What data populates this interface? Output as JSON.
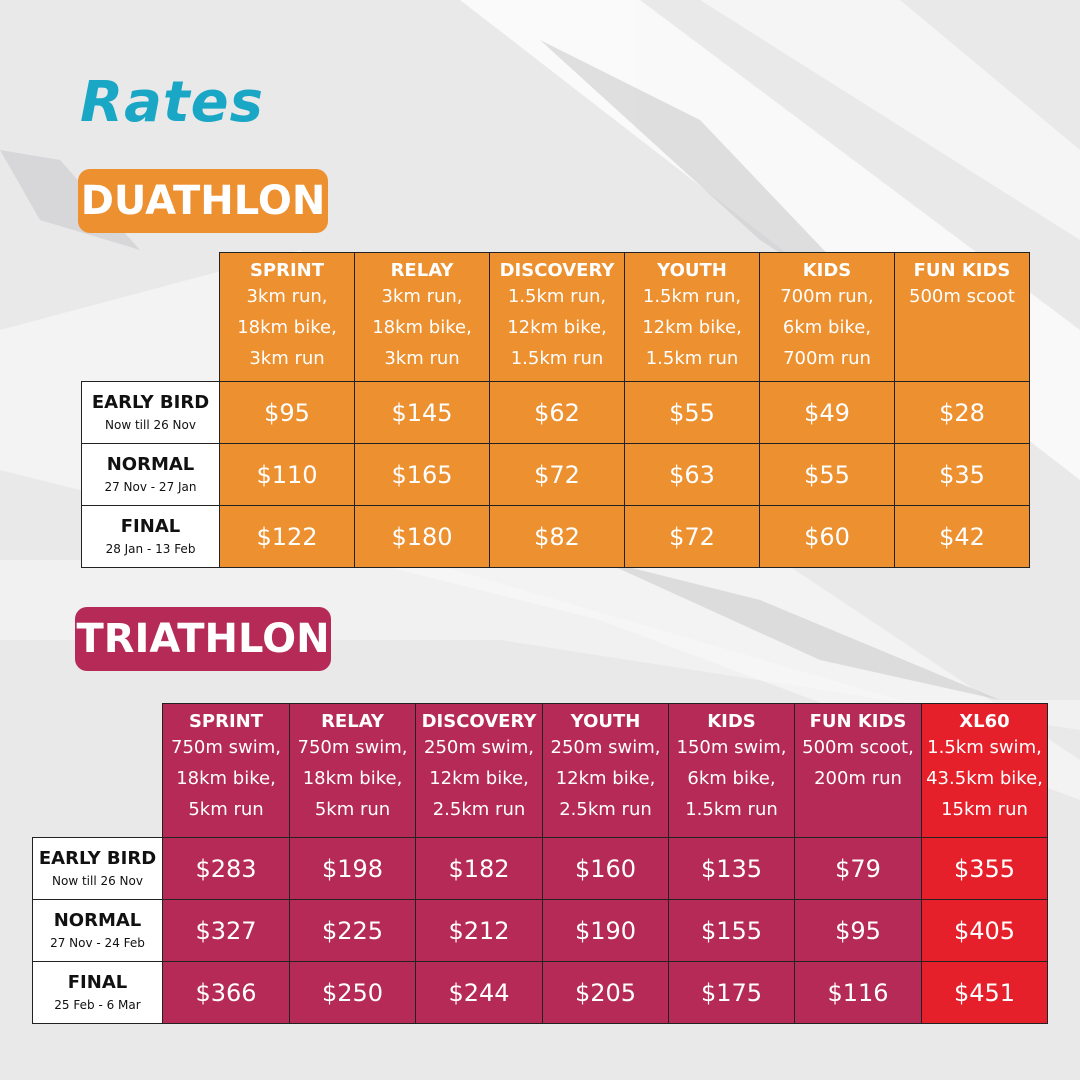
{
  "page_title": "Rates",
  "duathlon": {
    "heading": "DUATHLON",
    "columns": [
      {
        "name": "SPRINT",
        "desc": [
          "3km run,",
          "18km bike,",
          "3km run"
        ]
      },
      {
        "name": "RELAY",
        "desc": [
          "3km run,",
          "18km bike,",
          "3km run"
        ]
      },
      {
        "name": "DISCOVERY",
        "desc": [
          "1.5km run,",
          "12km bike,",
          "1.5km run"
        ]
      },
      {
        "name": "YOUTH",
        "desc": [
          "1.5km run,",
          "12km bike,",
          "1.5km run"
        ]
      },
      {
        "name": "KIDS",
        "desc": [
          "700m run,",
          "6km bike,",
          "700m run"
        ]
      },
      {
        "name": "FUN KIDS",
        "desc": [
          "500m scoot",
          "",
          ""
        ]
      }
    ],
    "rows": [
      {
        "label": "EARLY BIRD",
        "dates": "Now till 26 Nov",
        "prices": [
          "$95",
          "$145",
          "$62",
          "$55",
          "$49",
          "$28"
        ]
      },
      {
        "label": "NORMAL",
        "dates": "27 Nov - 27 Jan",
        "prices": [
          "$110",
          "$165",
          "$72",
          "$63",
          "$55",
          "$35"
        ]
      },
      {
        "label": "FINAL",
        "dates": "28 Jan  - 13 Feb",
        "prices": [
          "$122",
          "$180",
          "$82",
          "$72",
          "$60",
          "$42"
        ]
      }
    ]
  },
  "triathlon": {
    "heading": "TRIATHLON",
    "columns": [
      {
        "name": "SPRINT",
        "desc": [
          "750m swim,",
          "18km bike,",
          "5km run"
        ]
      },
      {
        "name": "RELAY",
        "desc": [
          "750m swim,",
          "18km bike,",
          "5km run"
        ]
      },
      {
        "name": "DISCOVERY",
        "desc": [
          "250m swim,",
          "12km bike,",
          "2.5km run"
        ]
      },
      {
        "name": "YOUTH",
        "desc": [
          "250m swim,",
          "12km bike,",
          "2.5km run"
        ]
      },
      {
        "name": "KIDS",
        "desc": [
          "150m swim,",
          "6km bike,",
          "1.5km run"
        ]
      },
      {
        "name": "FUN KIDS",
        "desc": [
          "500m scoot,",
          "200m run",
          ""
        ]
      },
      {
        "name": "XL60",
        "desc": [
          "1.5km swim,",
          "43.5km bike,",
          "15km run"
        ]
      }
    ],
    "rows": [
      {
        "label": "EARLY BIRD",
        "dates": "Now till 26 Nov",
        "prices": [
          "$283",
          "$198",
          "$182",
          "$160",
          "$135",
          "$79",
          "$355"
        ]
      },
      {
        "label": "NORMAL",
        "dates": "27 Nov - 24 Feb",
        "prices": [
          "$327",
          "$225",
          "$212",
          "$190",
          "$155",
          "$95",
          "$405"
        ]
      },
      {
        "label": "FINAL",
        "dates": "25 Feb  - 6 Mar",
        "prices": [
          "$366",
          "$250",
          "$244",
          "$205",
          "$175",
          "$116",
          "$451"
        ]
      }
    ]
  },
  "colors": {
    "title": "#19a7c5",
    "duathlon": "#ec9030",
    "triathlon": "#b52a57",
    "xl60": "#e6202a",
    "background": "#e9e9ea"
  }
}
